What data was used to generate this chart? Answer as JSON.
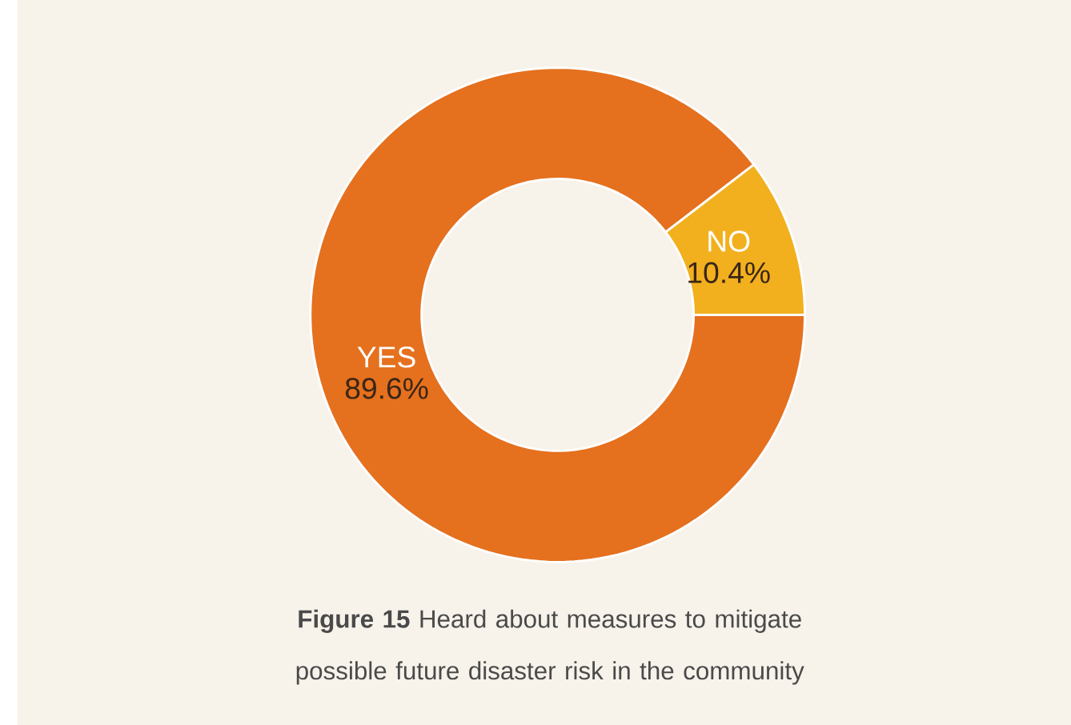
{
  "chart_data": {
    "type": "donut",
    "title": "**Figure 15** Heard about measures to mitigate possible future disaster risk in the community",
    "categories": [
      "YES",
      "NO"
    ],
    "values": [
      89.6,
      10.4
    ],
    "value_labels": [
      "89.6%",
      "10.4%"
    ],
    "colors": [
      "#e5701e",
      "#f2b01e"
    ]
  }
}
